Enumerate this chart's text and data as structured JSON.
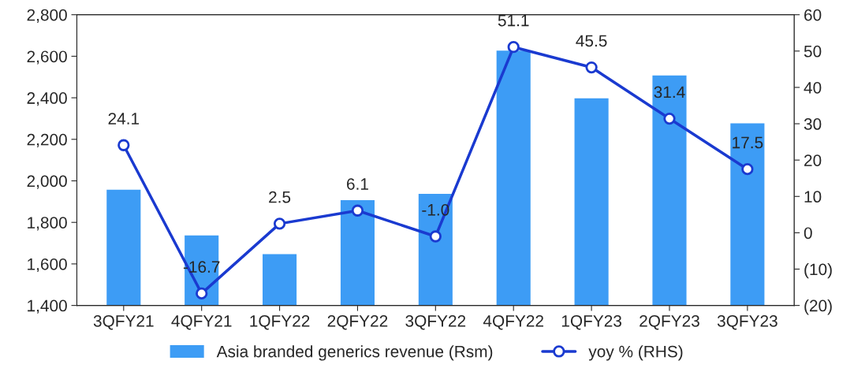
{
  "chart_data": {
    "type": "bar",
    "categories": [
      "3QFY21",
      "4QFY21",
      "1QFY22",
      "2QFY22",
      "3QFY22",
      "4QFY22",
      "1QFY23",
      "2QFY23",
      "3QFY23"
    ],
    "series": [
      {
        "name": "Asia branded generics revenue (Rsm)",
        "color": "#3d9cf5",
        "values": [
          1960,
          1740,
          1650,
          1910,
          1940,
          2630,
          2400,
          2510,
          2280
        ]
      },
      {
        "name": "yoy % (RHS)",
        "type": "line",
        "axis": "y2",
        "color": "#1a3ad0",
        "marker": "circle",
        "values": [
          24.1,
          -16.7,
          2.5,
          6.1,
          -1.0,
          51.1,
          45.5,
          31.4,
          17.5
        ],
        "value_labels": [
          "24.1",
          "-16.7",
          "2.5",
          "6.1",
          "-1.0",
          "51.1",
          "45.5",
          "31.4",
          "17.5"
        ]
      }
    ],
    "ylim": [
      1400,
      2800
    ],
    "yticks": [
      {
        "value": 1400,
        "label": "1,400"
      },
      {
        "value": 1600,
        "label": "1,600"
      },
      {
        "value": 1800,
        "label": "1,800"
      },
      {
        "value": 2000,
        "label": "2,000"
      },
      {
        "value": 2200,
        "label": "2,200"
      },
      {
        "value": 2400,
        "label": "2,400"
      },
      {
        "value": 2600,
        "label": "2,600"
      },
      {
        "value": 2800,
        "label": "2,800"
      }
    ],
    "y2lim": [
      -20,
      60
    ],
    "y2ticks": [
      {
        "value": -20,
        "label": "(20)"
      },
      {
        "value": -10,
        "label": "(10)"
      },
      0,
      10,
      20,
      30,
      40,
      50,
      60
    ],
    "grid": false,
    "legend": "bottom"
  }
}
